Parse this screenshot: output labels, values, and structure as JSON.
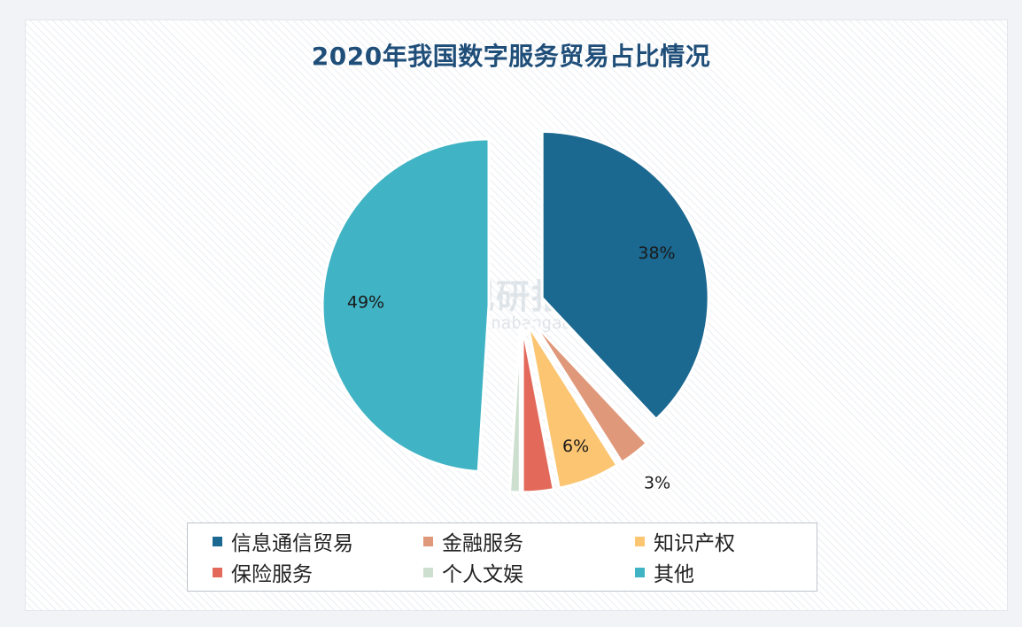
{
  "chart_data": {
    "type": "pie",
    "title": "2020年我国数字服务贸易占比情况",
    "categories": [
      "信息通信贸易",
      "金融服务",
      "知识产权",
      "保险服务",
      "个人文娱",
      "其他"
    ],
    "values": [
      38,
      3,
      6,
      3,
      1,
      49
    ],
    "value_labels": [
      "38%",
      "3%",
      "6%",
      "3%",
      "1%",
      "49%"
    ],
    "unit": "%",
    "colors": [
      "#1b6890",
      "#e0987a",
      "#fbc571",
      "#e36a5b",
      "#cde0d0",
      "#40b3c4"
    ],
    "legend_position": "bottom",
    "exploded": true
  },
  "watermark": {
    "cn": "观研报告网",
    "en": "chinabaogao.com"
  }
}
